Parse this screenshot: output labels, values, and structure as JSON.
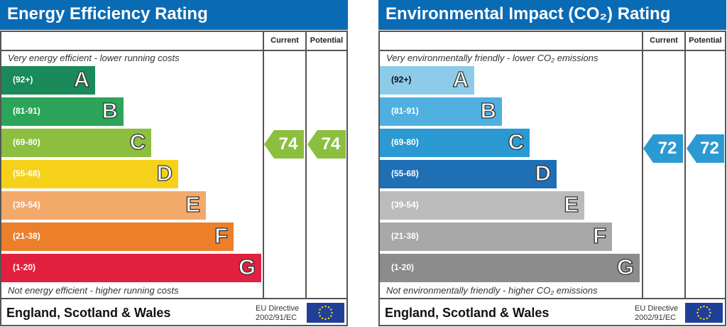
{
  "panels": [
    {
      "title": "Energy Efficiency Rating",
      "col_current": "Current",
      "col_potential": "Potential",
      "top_note": "Very energy efficient - lower running costs",
      "bottom_note": "Not energy efficient - higher running costs",
      "footer": "England, Scotland & Wales",
      "eu_line1": "EU Directive",
      "eu_line2": "2002/91/EC",
      "bands": [
        {
          "range": "(92+)",
          "letter": "A",
          "color": "#1a8a5a"
        },
        {
          "range": "(81-91)",
          "letter": "B",
          "color": "#2ca55a"
        },
        {
          "range": "(69-80)",
          "letter": "C",
          "color": "#8cbf3f"
        },
        {
          "range": "(55-68)",
          "letter": "D",
          "color": "#f6d11a"
        },
        {
          "range": "(39-54)",
          "letter": "E",
          "color": "#f2a96a"
        },
        {
          "range": "(21-38)",
          "letter": "F",
          "color": "#ec7f2a"
        },
        {
          "range": "(1-20)",
          "letter": "G",
          "color": "#e1203f"
        }
      ],
      "current": "74",
      "potential": "74",
      "current_color": "#8cbf3f",
      "potential_color": "#8cbf3f"
    },
    {
      "title": "Environmental Impact (CO₂) Rating",
      "col_current": "Current",
      "col_potential": "Potential",
      "top_note": "Very environmentally friendly - lower CO₂ emissions",
      "bottom_note": "Not environmentally friendly - higher CO₂ emissions",
      "footer": "England, Scotland & Wales",
      "eu_line1": "EU Directive",
      "eu_line2": "2002/91/EC",
      "bands": [
        {
          "range": "(92+)",
          "letter": "A",
          "color": "#8ccbe9"
        },
        {
          "range": "(81-91)",
          "letter": "B",
          "color": "#4fb0e0"
        },
        {
          "range": "(69-80)",
          "letter": "C",
          "color": "#2b9ad3"
        },
        {
          "range": "(55-68)",
          "letter": "D",
          "color": "#1f6fb5"
        },
        {
          "range": "(39-54)",
          "letter": "E",
          "color": "#bbbbbb"
        },
        {
          "range": "(21-38)",
          "letter": "F",
          "color": "#a8a8a8"
        },
        {
          "range": "(1-20)",
          "letter": "G",
          "color": "#8c8c8c"
        }
      ],
      "current": "72",
      "potential": "72",
      "current_color": "#2b9ad3",
      "potential_color": "#2b9ad3"
    }
  ]
}
